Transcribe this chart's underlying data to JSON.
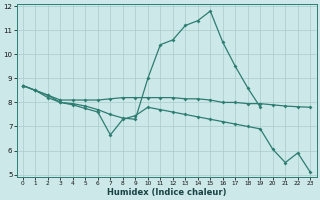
{
  "line_peak": {
    "x": [
      0,
      1,
      2,
      3,
      4,
      5,
      6,
      7,
      8,
      9,
      10,
      11,
      12,
      13,
      14,
      15,
      16,
      17,
      18,
      19
    ],
    "y": [
      8.7,
      8.5,
      8.3,
      8.0,
      7.95,
      7.85,
      7.7,
      7.5,
      7.35,
      7.3,
      9.0,
      10.4,
      10.6,
      11.2,
      11.4,
      11.8,
      10.5,
      9.5,
      8.6,
      7.8
    ]
  },
  "line_flat": {
    "x": [
      0,
      1,
      2,
      3,
      4,
      5,
      6,
      7,
      8,
      9,
      10,
      11,
      12,
      13,
      14,
      15,
      16,
      17,
      18,
      19,
      20,
      21,
      22,
      23
    ],
    "y": [
      8.7,
      8.5,
      8.3,
      8.1,
      8.1,
      8.1,
      8.1,
      8.15,
      8.2,
      8.2,
      8.2,
      8.2,
      8.2,
      8.15,
      8.15,
      8.1,
      8.0,
      8.0,
      7.95,
      7.95,
      7.9,
      7.85,
      7.82,
      7.8
    ]
  },
  "line_decline": {
    "x": [
      0,
      1,
      2,
      3,
      4,
      5,
      6,
      7,
      8,
      9,
      10,
      11,
      12,
      13,
      14,
      15,
      16,
      17,
      18,
      19,
      20,
      21,
      22,
      23
    ],
    "y": [
      8.7,
      8.5,
      8.2,
      8.0,
      7.9,
      7.75,
      7.6,
      6.65,
      7.3,
      7.45,
      7.8,
      7.7,
      7.6,
      7.5,
      7.4,
      7.3,
      7.2,
      7.1,
      7.0,
      6.9,
      6.05,
      5.5,
      5.9,
      5.1
    ]
  },
  "color": "#2e7d72",
  "bg_color": "#cce8e8",
  "grid_color": "#aacccc",
  "xlabel": "Humidex (Indice chaleur)",
  "ylim": [
    5,
    12
  ],
  "xlim": [
    -0.5,
    23.5
  ],
  "yticks": [
    5,
    6,
    7,
    8,
    9,
    10,
    11,
    12
  ],
  "xticks": [
    0,
    1,
    2,
    3,
    4,
    5,
    6,
    7,
    8,
    9,
    10,
    11,
    12,
    13,
    14,
    15,
    16,
    17,
    18,
    19,
    20,
    21,
    22,
    23
  ]
}
